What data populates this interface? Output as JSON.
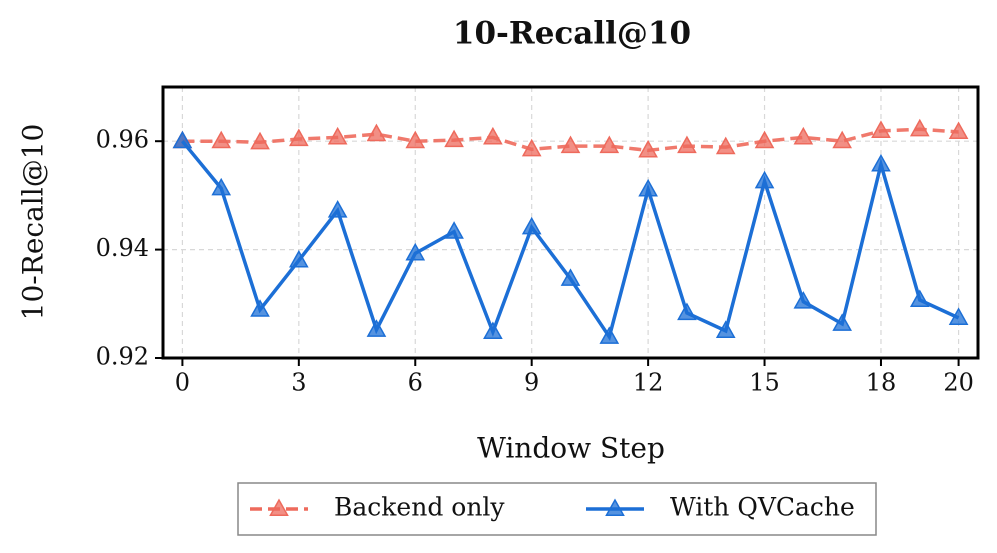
{
  "chart_data": {
    "type": "line",
    "title": "10-Recall@10",
    "xlabel": "Window Step",
    "ylabel": "10-Recall@10",
    "x": [
      0,
      1,
      2,
      3,
      4,
      5,
      6,
      7,
      8,
      9,
      10,
      11,
      12,
      13,
      14,
      15,
      16,
      17,
      18,
      19,
      20
    ],
    "series": [
      {
        "name": "Backend only",
        "color": "#ee6a5c",
        "dashed": true,
        "marker": "triangle",
        "values": [
          0.96,
          0.96,
          0.9598,
          0.9604,
          0.9607,
          0.9613,
          0.96,
          0.9602,
          0.9607,
          0.9585,
          0.9591,
          0.9591,
          0.9583,
          0.9591,
          0.9589,
          0.96,
          0.9607,
          0.96,
          0.9619,
          0.9622,
          0.9617
        ]
      },
      {
        "name": "With QVCache",
        "color": "#1c6fd6",
        "dashed": false,
        "marker": "triangle",
        "values": [
          0.96,
          0.9513,
          0.9289,
          0.938,
          0.9472,
          0.9252,
          0.9393,
          0.9433,
          0.9248,
          0.9441,
          0.9346,
          0.9239,
          0.9511,
          0.9283,
          0.925,
          0.9526,
          0.9304,
          0.9263,
          0.9557,
          0.9307,
          0.9274
        ]
      }
    ],
    "xlim": [
      -0.5,
      20.5
    ],
    "xticks": [
      0,
      3,
      6,
      9,
      12,
      15,
      18,
      20
    ],
    "ylim": [
      0.92,
      0.97
    ],
    "yticks": [
      0.92,
      0.94,
      0.96
    ],
    "grid": true,
    "legend": "bottom"
  }
}
